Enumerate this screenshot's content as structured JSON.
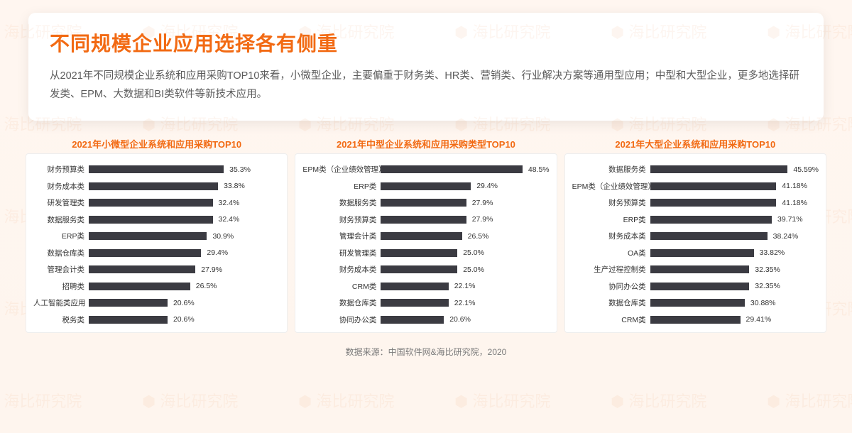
{
  "watermark_text": "海比研究院",
  "header": {
    "title": "不同规模企业应用选择各有侧重",
    "description": "从2021年不同规模企业系统和应用采购TOP10来看，小微型企业，主要偏重于财务类、HR类、营销类、行业解决方案等通用型应用；中型和大型企业，更多地选择研发类、EPM、大数据和BI类软件等新技术应用。"
  },
  "panels": [
    {
      "title": "2021年小微型企业系统和应用采购TOP10",
      "label_width": 78,
      "max": 50,
      "bar_color": "#3b3b42",
      "rows": [
        {
          "label": "财务预算类",
          "value": 35.3,
          "display": "35.3%"
        },
        {
          "label": "财务成本类",
          "value": 33.8,
          "display": "33.8%"
        },
        {
          "label": "研发管理类",
          "value": 32.4,
          "display": "32.4%"
        },
        {
          "label": "数据服务类",
          "value": 32.4,
          "display": "32.4%"
        },
        {
          "label": "ERP类",
          "value": 30.9,
          "display": "30.9%"
        },
        {
          "label": "数据仓库类",
          "value": 29.4,
          "display": "29.4%"
        },
        {
          "label": "管理会计类",
          "value": 27.9,
          "display": "27.9%"
        },
        {
          "label": "招聘类",
          "value": 26.5,
          "display": "26.5%"
        },
        {
          "label": "人工智能类应用",
          "value": 20.6,
          "display": "20.6%"
        },
        {
          "label": "税务类",
          "value": 20.6,
          "display": "20.6%"
        }
      ]
    },
    {
      "title": "2021年中型企业系统和应用采购类型TOP10",
      "label_width": 110,
      "max": 55,
      "bar_color": "#3b3b42",
      "rows": [
        {
          "label": "EPM类（企业绩效管理）",
          "value": 48.5,
          "display": "48.5%"
        },
        {
          "label": "ERP类",
          "value": 29.4,
          "display": "29.4%"
        },
        {
          "label": "数据服务类",
          "value": 27.9,
          "display": "27.9%"
        },
        {
          "label": "财务预算类",
          "value": 27.9,
          "display": "27.9%"
        },
        {
          "label": "管理会计类",
          "value": 26.5,
          "display": "26.5%"
        },
        {
          "label": "研发管理类",
          "value": 25.0,
          "display": "25.0%"
        },
        {
          "label": "财务成本类",
          "value": 25.0,
          "display": "25.0%"
        },
        {
          "label": "CRM类",
          "value": 22.1,
          "display": "22.1%"
        },
        {
          "label": "数据仓库类",
          "value": 22.1,
          "display": "22.1%"
        },
        {
          "label": "协同办公类",
          "value": 20.6,
          "display": "20.6%"
        }
      ]
    },
    {
      "title": "2021年大型企业系统和应用采购TOP10",
      "label_width": 110,
      "max": 55,
      "bar_color": "#3b3b42",
      "rows": [
        {
          "label": "数据服务类",
          "value": 45.59,
          "display": "45.59%"
        },
        {
          "label": "EPM类（企业绩效管理）",
          "value": 41.18,
          "display": "41.18%"
        },
        {
          "label": "财务预算类",
          "value": 41.18,
          "display": "41.18%"
        },
        {
          "label": "ERP类",
          "value": 39.71,
          "display": "39.71%"
        },
        {
          "label": "财务成本类",
          "value": 38.24,
          "display": "38.24%"
        },
        {
          "label": "OA类",
          "value": 33.82,
          "display": "33.82%"
        },
        {
          "label": "生产过程控制类",
          "value": 32.35,
          "display": "32.35%"
        },
        {
          "label": "协同办公类",
          "value": 32.35,
          "display": "32.35%"
        },
        {
          "label": "数据仓库类",
          "value": 30.88,
          "display": "30.88%"
        },
        {
          "label": "CRM类",
          "value": 29.41,
          "display": "29.41%"
        }
      ]
    }
  ],
  "source": "数据来源：中国软件网&海比研究院，2020",
  "colors": {
    "accent": "#f26a13",
    "bar": "#3b3b42",
    "text": "#333333",
    "muted": "#7a7a7a",
    "panel_bg": "#ffffff",
    "page_bg": "#fef5ee"
  }
}
